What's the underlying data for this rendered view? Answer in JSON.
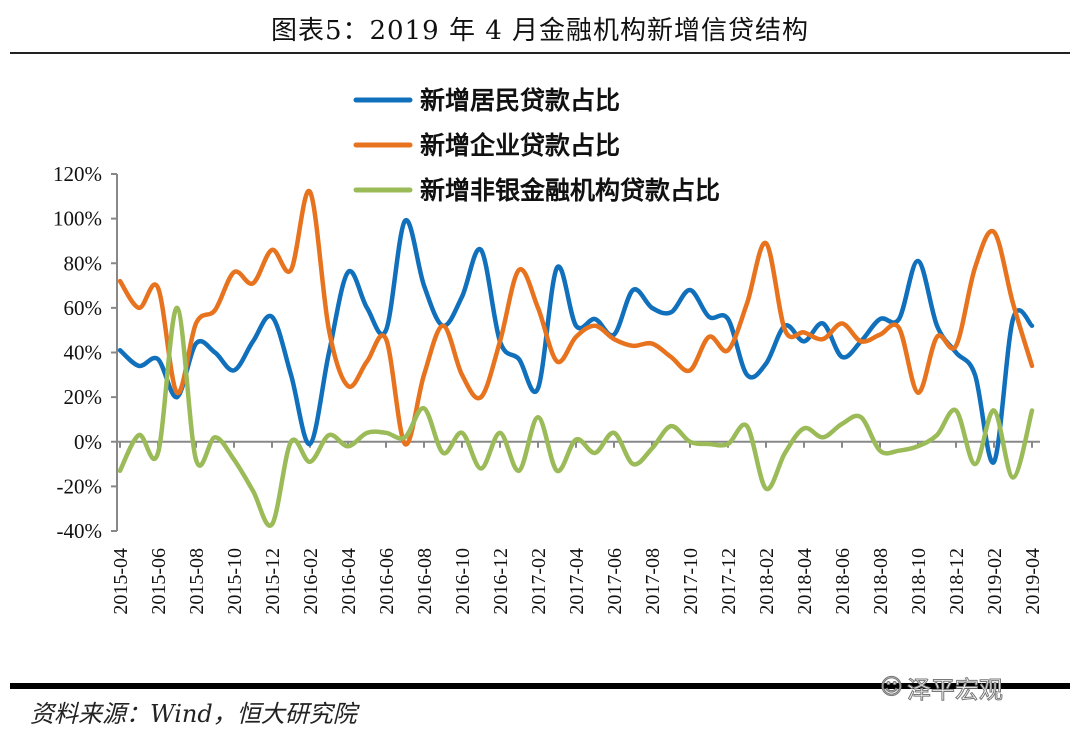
{
  "title": "图表5：2019 年 4 月金融机构新增信贷结构",
  "source": "资料来源：Wind，恒大研究院",
  "watermark": "泽平宏观",
  "chart_data": {
    "type": "line",
    "title": "图表5：2019 年 4 月金融机构新增信贷结构",
    "xlabel": "",
    "ylabel": "",
    "ylim": [
      -40,
      120
    ],
    "y_ticks": [
      "-40%",
      "-20%",
      "0%",
      "20%",
      "40%",
      "60%",
      "80%",
      "100%",
      "120%"
    ],
    "y_tick_values": [
      -40,
      -20,
      0,
      20,
      40,
      60,
      80,
      100,
      120
    ],
    "x": [
      "2015-04",
      "2015-05",
      "2015-06",
      "2015-07",
      "2015-08",
      "2015-09",
      "2015-10",
      "2015-11",
      "2015-12",
      "2016-01",
      "2016-02",
      "2016-03",
      "2016-04",
      "2016-05",
      "2016-06",
      "2016-07",
      "2016-08",
      "2016-09",
      "2016-10",
      "2016-11",
      "2016-12",
      "2017-01",
      "2017-02",
      "2017-03",
      "2017-04",
      "2017-05",
      "2017-06",
      "2017-07",
      "2017-08",
      "2017-09",
      "2017-10",
      "2017-11",
      "2017-12",
      "2018-01",
      "2018-02",
      "2018-03",
      "2018-04",
      "2018-05",
      "2018-06",
      "2018-07",
      "2018-08",
      "2018-09",
      "2018-10",
      "2018-11",
      "2018-12",
      "2019-01",
      "2019-02",
      "2019-03",
      "2019-04"
    ],
    "x_tick_labels": [
      "2015-04",
      "2015-06",
      "2015-08",
      "2015-10",
      "2015-12",
      "2016-02",
      "2016-04",
      "2016-06",
      "2016-08",
      "2016-10",
      "2016-12",
      "2017-02",
      "2017-04",
      "2017-06",
      "2017-08",
      "2017-10",
      "2017-12",
      "2018-02",
      "2018-04",
      "2018-06",
      "2018-08",
      "2018-10",
      "2018-12",
      "2019-02",
      "2019-04"
    ],
    "grid": false,
    "legend_position": "top",
    "series": [
      {
        "name": "新增居民贷款占比",
        "color": "#1170BC",
        "values": [
          41,
          34,
          37,
          20,
          44,
          40,
          32,
          45,
          56,
          30,
          -1,
          40,
          76,
          60,
          50,
          99,
          70,
          52,
          65,
          86,
          45,
          37,
          24,
          78,
          52,
          55,
          48,
          68,
          60,
          58,
          68,
          56,
          55,
          30,
          35,
          52,
          45,
          53,
          38,
          45,
          55,
          55,
          81,
          52,
          40,
          30,
          -9,
          55,
          52
        ]
      },
      {
        "name": "新增企业贷款占比",
        "color": "#E8731E",
        "values": [
          72,
          60,
          69,
          22,
          53,
          59,
          76,
          71,
          86,
          77,
          112,
          50,
          25,
          36,
          46,
          -1,
          30,
          52,
          30,
          20,
          45,
          77,
          60,
          36,
          47,
          52,
          46,
          43,
          44,
          38,
          32,
          47,
          41,
          62,
          89,
          50,
          49,
          46,
          53,
          45,
          48,
          51,
          22,
          47,
          43,
          78,
          94,
          62,
          34
        ]
      },
      {
        "name": "新增非银金融机构贷款占比",
        "color": "#9BBB59",
        "values": [
          -13,
          3,
          -5,
          60,
          -8,
          2,
          -8,
          -22,
          -37,
          0,
          -9,
          3,
          -2,
          4,
          4,
          2,
          15,
          -5,
          4,
          -12,
          4,
          -13,
          11,
          -13,
          1,
          -5,
          4,
          -10,
          -3,
          7,
          0,
          -1,
          -1,
          7,
          -21,
          -5,
          6,
          2,
          8,
          11,
          -4,
          -4,
          -2,
          3,
          14,
          -10,
          14,
          -16,
          14
        ]
      }
    ]
  }
}
